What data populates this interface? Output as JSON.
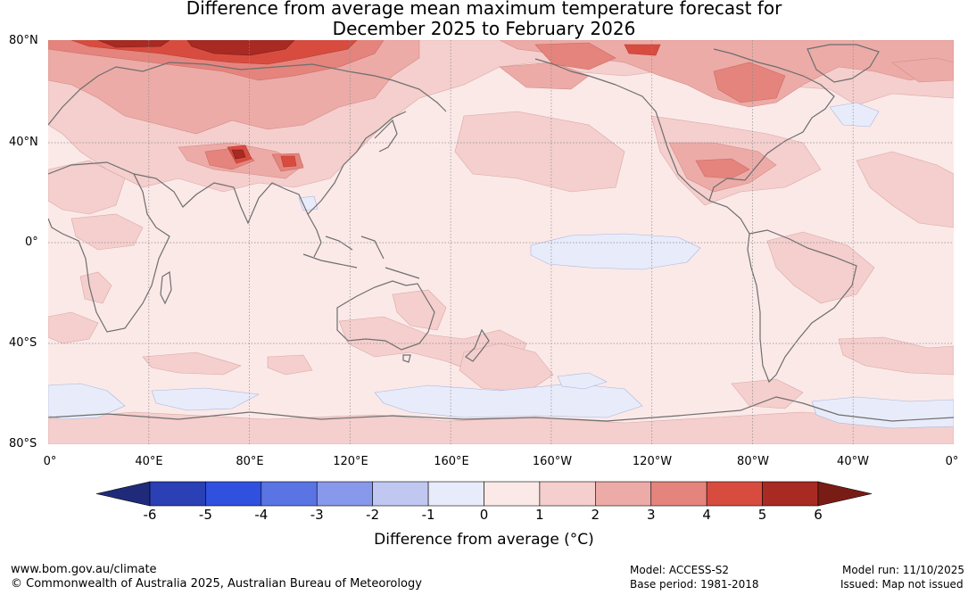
{
  "title": {
    "line1": "Difference from average mean maximum temperature forecast for",
    "line2": "December 2025 to February 2026"
  },
  "latitude_labels": [
    "80°N",
    "40°N",
    "0°",
    "40°S",
    "80°S"
  ],
  "longitude_labels": [
    "0°",
    "40°E",
    "80°E",
    "120°E",
    "160°E",
    "160°W",
    "120°W",
    "80°W",
    "40°W",
    "0°"
  ],
  "colorbar": {
    "ticks": [
      "-6",
      "-5",
      "-4",
      "-3",
      "-2",
      "-1",
      "0",
      "1",
      "2",
      "3",
      "4",
      "5",
      "6"
    ],
    "colors": [
      "#1f2b7a",
      "#2a40b4",
      "#3050e0",
      "#5a74e4",
      "#8898ea",
      "#c0c8f2",
      "#e8ecfa",
      "#fbe9e8",
      "#f4cfcd",
      "#ecaba7",
      "#e4847d",
      "#d84c40",
      "#a82a22",
      "#7a1c16"
    ],
    "label": "Difference from average (°C)"
  },
  "footer": {
    "website": "www.bom.gov.au/climate",
    "copyright": "© Commonwealth of Australia 2025, Australian Bureau of Meteorology",
    "model": "Model: ACCESS-S2",
    "base_period": "Base period: 1981-2018",
    "model_run": "Model run: 11/10/2025",
    "issued": "Issued: Map not issued"
  }
}
